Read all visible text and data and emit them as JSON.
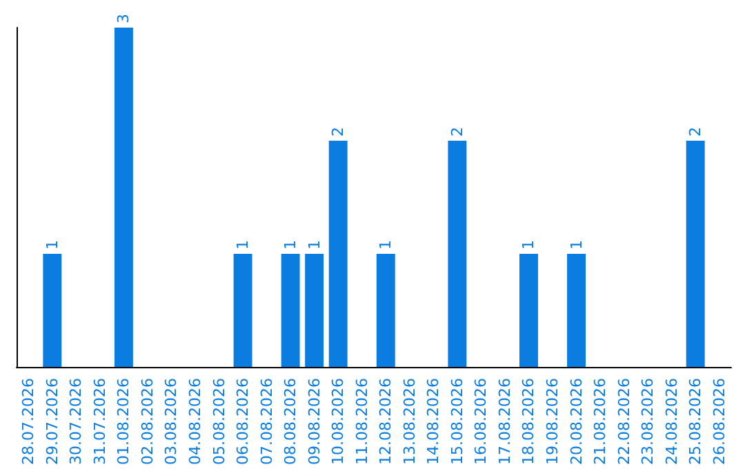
{
  "chart_data": {
    "type": "bar",
    "categories": [
      "28.07.2026",
      "29.07.2026",
      "30.07.2026",
      "31.07.2026",
      "01.08.2026",
      "02.08.2026",
      "03.08.2026",
      "04.08.2026",
      "05.08.2026",
      "06.08.2026",
      "07.08.2026",
      "08.08.2026",
      "09.08.2026",
      "10.08.2026",
      "11.08.2026",
      "12.08.2026",
      "13.08.2026",
      "14.08.2026",
      "15.08.2026",
      "16.08.2026",
      "17.08.2026",
      "18.08.2026",
      "19.08.2026",
      "20.08.2026",
      "21.08.2026",
      "22.08.2026",
      "23.08.2026",
      "24.08.2026",
      "25.08.2026",
      "26.08.2026"
    ],
    "values": [
      0,
      1,
      0,
      0,
      3,
      0,
      0,
      0,
      0,
      1,
      0,
      1,
      1,
      2,
      0,
      1,
      0,
      0,
      2,
      0,
      0,
      1,
      0,
      1,
      0,
      0,
      0,
      0,
      2,
      0
    ],
    "value_labels": [
      null,
      "1",
      null,
      null,
      "3",
      null,
      null,
      null,
      null,
      "1",
      null,
      "1",
      "1",
      "2",
      null,
      "1",
      null,
      null,
      "2",
      null,
      null,
      "1",
      null,
      "1",
      null,
      null,
      null,
      null,
      "2",
      null
    ],
    "color": "#0b7ce0",
    "tick_labels": "x"
  }
}
